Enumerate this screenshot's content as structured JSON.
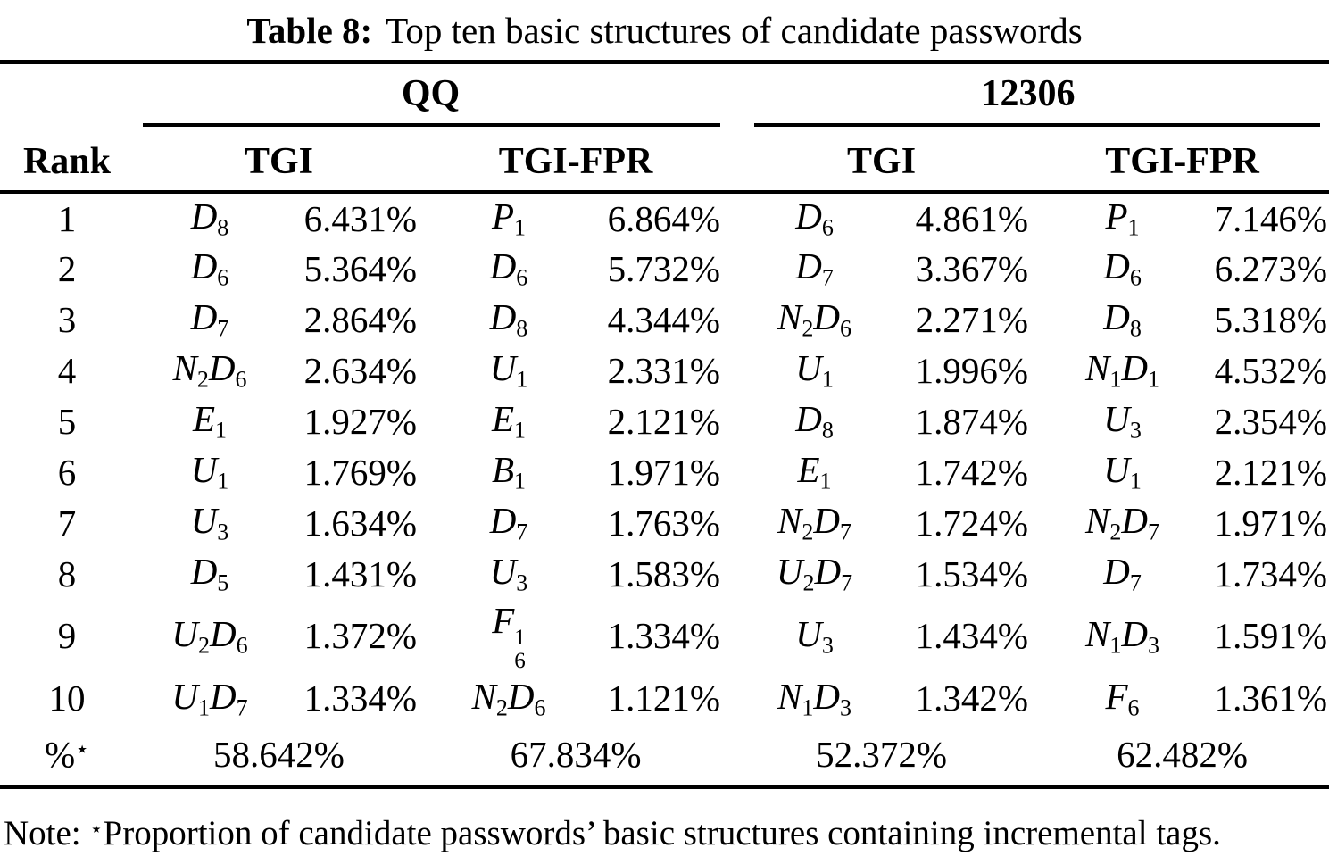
{
  "title": {
    "bold": "Table 8:",
    "rest": "Top ten basic structures of candidate passwords"
  },
  "table": {
    "groups": [
      "QQ",
      "12306"
    ],
    "rank_header": "Rank",
    "sub_headers": [
      "TGI",
      "TGI-FPR",
      "TGI",
      "TGI-FPR"
    ],
    "rows": [
      {
        "rank": "1",
        "cells": [
          [
            "D_8",
            "6.431%"
          ],
          [
            "P_1",
            "6.864%"
          ],
          [
            "D_6",
            "4.861%"
          ],
          [
            "P_1",
            "7.146%"
          ]
        ]
      },
      {
        "rank": "2",
        "cells": [
          [
            "D_6",
            "5.364%"
          ],
          [
            "D_6",
            "5.732%"
          ],
          [
            "D_7",
            "3.367%"
          ],
          [
            "D_6",
            "6.273%"
          ]
        ]
      },
      {
        "rank": "3",
        "cells": [
          [
            "D_7",
            "2.864%"
          ],
          [
            "D_8",
            "4.344%"
          ],
          [
            "N_2 D_6",
            "2.271%"
          ],
          [
            "D_8",
            "5.318%"
          ]
        ]
      },
      {
        "rank": "4",
        "cells": [
          [
            "N_2 D_6",
            "2.634%"
          ],
          [
            "U_1",
            "2.331%"
          ],
          [
            "U_1",
            "1.996%"
          ],
          [
            "N_1 D_1",
            "4.532%"
          ]
        ]
      },
      {
        "rank": "5",
        "cells": [
          [
            "E_1",
            "1.927%"
          ],
          [
            "E_1",
            "2.121%"
          ],
          [
            "D_8",
            "1.874%"
          ],
          [
            "U_3",
            "2.354%"
          ]
        ]
      },
      {
        "rank": "6",
        "cells": [
          [
            "U_1",
            "1.769%"
          ],
          [
            "B_1",
            "1.971%"
          ],
          [
            "E_1",
            "1.742%"
          ],
          [
            "U_1",
            "2.121%"
          ]
        ]
      },
      {
        "rank": "7",
        "cells": [
          [
            "U_3",
            "1.634%"
          ],
          [
            "D_7",
            "1.763%"
          ],
          [
            "N_2 D_7",
            "1.724%"
          ],
          [
            "N_2 D_7",
            "1.971%"
          ]
        ]
      },
      {
        "rank": "8",
        "cells": [
          [
            "D_5",
            "1.431%"
          ],
          [
            "U_3",
            "1.583%"
          ],
          [
            "U_2 D_7",
            "1.534%"
          ],
          [
            "D_7",
            "1.734%"
          ]
        ]
      },
      {
        "rank": "9",
        "cells": [
          [
            "U_2 D_6",
            "1.372%"
          ],
          [
            "F_6^1",
            "1.334%"
          ],
          [
            "U_3",
            "1.434%"
          ],
          [
            "N_1 D_3",
            "1.591%"
          ]
        ]
      },
      {
        "rank": "10",
        "cells": [
          [
            "U_1 D_7",
            "1.334%"
          ],
          [
            "N_2 D_6",
            "1.121%"
          ],
          [
            "N_1 D_3",
            "1.342%"
          ],
          [
            "F_6",
            "1.361%"
          ]
        ]
      }
    ],
    "summary": {
      "label": "%",
      "star": "⋆",
      "values": [
        "58.642%",
        "67.834%",
        "52.372%",
        "62.482%"
      ]
    }
  },
  "note": {
    "prefix": "Note: ",
    "star": "⋆",
    "text": "Proportion of candidate passwords’ basic structures containing incremental tags."
  }
}
